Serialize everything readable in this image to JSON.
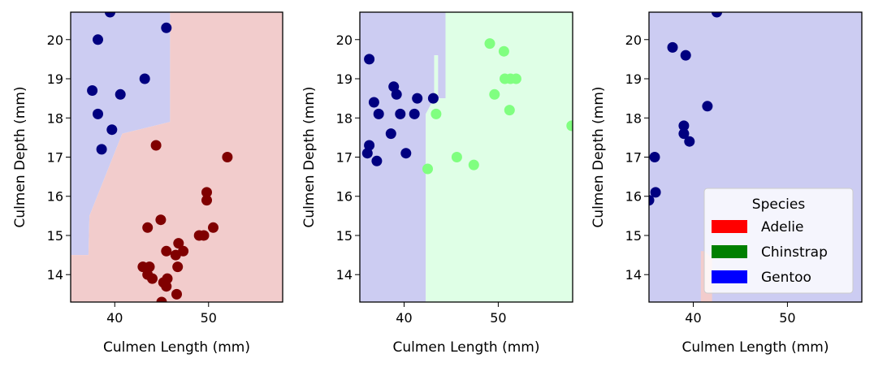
{
  "colors": {
    "adelie_region": "#f2cccc",
    "gentoo_region": "#ccccf2",
    "chinstrap_region": "#dfffe6",
    "adelie_point": "#800000",
    "gentoo_point": "#000080",
    "chinstrap_point": "#80ff80",
    "legend_adelie": "#ff0000",
    "legend_chinstrap": "#008000",
    "legend_gentoo": "#0000ff"
  },
  "chart_data": [
    {
      "type": "scatter",
      "xlabel": "Culmen Length (mm)",
      "ylabel": "Culmen Depth (mm)",
      "xlim": [
        35.3,
        57.9
      ],
      "ylim": [
        13.3,
        20.7
      ],
      "xticks": [
        40,
        50
      ],
      "yticks": [
        14,
        15,
        16,
        17,
        18,
        19,
        20
      ],
      "regions": [
        {
          "class": "Gentoo",
          "color": "#ccccf2",
          "polygon": [
            [
              35.3,
              20.7
            ],
            [
              45.9,
              20.7
            ],
            [
              45.9,
              17.9
            ],
            [
              40.8,
              17.6
            ],
            [
              37.3,
              15.5
            ],
            [
              37.2,
              14.5
            ],
            [
              35.3,
              14.5
            ]
          ]
        },
        {
          "class": "Adelie",
          "color": "#f2cccc",
          "polygon": [
            [
              45.9,
              20.7
            ],
            [
              57.9,
              20.7
            ],
            [
              57.9,
              13.3
            ],
            [
              35.3,
              13.3
            ],
            [
              35.3,
              14.5
            ],
            [
              37.2,
              14.5
            ],
            [
              37.3,
              15.5
            ],
            [
              40.8,
              17.6
            ],
            [
              45.9,
              17.9
            ]
          ]
        }
      ],
      "series": [
        {
          "name": "Gentoo",
          "color": "#000080",
          "x": [
            39.5,
            38.2,
            45.5,
            37.6,
            43.2,
            38.2,
            40.6,
            39.7,
            38.6
          ],
          "y": [
            20.7,
            20.0,
            20.3,
            18.7,
            19.0,
            18.1,
            18.6,
            17.7,
            17.2
          ]
        },
        {
          "name": "Adelie",
          "color": "#800000",
          "x": [
            44.4,
            52.0,
            49.8,
            49.8,
            43.5,
            44.9,
            49.0,
            49.5,
            50.5,
            45.5,
            46.5,
            46.8,
            47.3,
            43.0,
            43.7,
            43.5,
            44.0,
            45.2,
            45.6,
            45.5,
            46.7,
            46.6,
            45.0
          ],
          "y": [
            17.3,
            17.0,
            16.1,
            15.9,
            15.2,
            15.4,
            15.0,
            15.0,
            15.2,
            14.6,
            14.5,
            14.8,
            14.6,
            14.2,
            14.2,
            14.0,
            13.9,
            13.8,
            13.9,
            13.7,
            14.2,
            13.5,
            13.3
          ]
        }
      ]
    },
    {
      "type": "scatter",
      "xlabel": "Culmen Length (mm)",
      "ylabel": "Culmen Depth (mm)",
      "xlim": [
        35.3,
        57.9
      ],
      "ylim": [
        13.3,
        20.7
      ],
      "xticks": [
        40,
        50
      ],
      "yticks": [
        14,
        15,
        16,
        17,
        18,
        19,
        20
      ],
      "regions": [
        {
          "class": "Gentoo",
          "color": "#ccccf2",
          "polygon": [
            [
              35.3,
              20.7
            ],
            [
              44.4,
              20.7
            ],
            [
              44.4,
              18.5
            ],
            [
              43.6,
              18.5
            ],
            [
              43.6,
              19.6
            ],
            [
              43.2,
              19.6
            ],
            [
              43.2,
              18.5
            ],
            [
              42.3,
              18.1
            ],
            [
              42.3,
              13.3
            ],
            [
              35.3,
              13.3
            ]
          ]
        },
        {
          "class": "Chinstrap",
          "color": "#dfffe6",
          "polygon": [
            [
              44.4,
              20.7
            ],
            [
              57.9,
              20.7
            ],
            [
              57.9,
              13.3
            ],
            [
              42.3,
              13.3
            ],
            [
              42.3,
              18.1
            ],
            [
              43.2,
              18.5
            ],
            [
              43.2,
              19.6
            ],
            [
              43.6,
              19.6
            ],
            [
              43.6,
              18.5
            ],
            [
              44.4,
              18.5
            ]
          ]
        }
      ],
      "series": [
        {
          "name": "Gentoo",
          "color": "#000080",
          "x": [
            36.3,
            36.8,
            37.3,
            38.6,
            38.9,
            39.2,
            39.6,
            41.1,
            41.4,
            43.1,
            36.1,
            36.3,
            37.1,
            40.2
          ],
          "y": [
            19.5,
            18.4,
            18.1,
            17.6,
            18.8,
            18.6,
            18.1,
            18.1,
            18.5,
            18.5,
            17.1,
            17.3,
            16.9,
            17.1
          ]
        },
        {
          "name": "Chinstrap",
          "color": "#80ff80",
          "x": [
            49.1,
            50.6,
            50.7,
            51.3,
            51.9,
            49.6,
            51.2,
            43.4,
            57.8,
            45.6,
            47.4,
            42.5
          ],
          "y": [
            19.9,
            19.7,
            19.0,
            19.0,
            19.0,
            18.6,
            18.2,
            18.1,
            17.8,
            17.0,
            16.8,
            16.7
          ]
        }
      ]
    },
    {
      "type": "scatter",
      "xlabel": "Culmen Length (mm)",
      "ylabel": "Culmen Depth (mm)",
      "xlim": [
        35.3,
        57.9
      ],
      "ylim": [
        13.3,
        20.7
      ],
      "xticks": [
        40,
        50
      ],
      "yticks": [
        14,
        15,
        16,
        17,
        18,
        19,
        20
      ],
      "regions": [
        {
          "class": "Gentoo",
          "color": "#ccccf2",
          "polygon": [
            [
              35.3,
              20.7
            ],
            [
              57.9,
              20.7
            ],
            [
              57.9,
              13.3
            ],
            [
              35.3,
              13.3
            ]
          ]
        },
        {
          "class": "Adelie",
          "color": "#f2cccc",
          "polygon": [
            [
              40.8,
              14.6
            ],
            [
              41.2,
              14.6
            ],
            [
              42.0,
              14.4
            ],
            [
              42.0,
              13.3
            ],
            [
              40.8,
              13.3
            ]
          ]
        }
      ],
      "series": [
        {
          "name": "Gentoo",
          "color": "#000080",
          "x": [
            42.5,
            37.8,
            39.2,
            41.5,
            39.0,
            39.0,
            39.6,
            35.9,
            35.3,
            36.0
          ],
          "y": [
            20.7,
            19.8,
            19.6,
            18.3,
            17.8,
            17.6,
            17.4,
            17.0,
            15.9,
            16.1
          ]
        }
      ],
      "legend": {
        "title": "Species",
        "position": "lower-right",
        "entries": [
          {
            "label": "Adelie",
            "color": "#ff0000"
          },
          {
            "label": "Chinstrap",
            "color": "#008000"
          },
          {
            "label": "Gentoo",
            "color": "#0000ff"
          }
        ]
      }
    }
  ]
}
